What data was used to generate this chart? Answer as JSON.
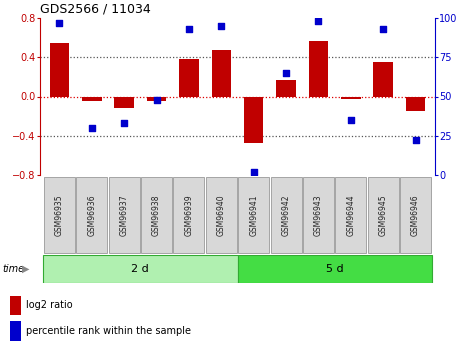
{
  "title": "GDS2566 / 11034",
  "samples": [
    "GSM96935",
    "GSM96936",
    "GSM96937",
    "GSM96938",
    "GSM96939",
    "GSM96940",
    "GSM96941",
    "GSM96942",
    "GSM96943",
    "GSM96944",
    "GSM96945",
    "GSM96946"
  ],
  "log2_ratio": [
    0.55,
    -0.05,
    -0.12,
    -0.05,
    0.38,
    0.47,
    -0.47,
    0.17,
    0.57,
    -0.03,
    0.35,
    -0.15
  ],
  "percentile": [
    97,
    30,
    33,
    48,
    93,
    95,
    2,
    65,
    98,
    35,
    93,
    22
  ],
  "bar_color": "#c00000",
  "dot_color": "#0000cc",
  "group1_label": "2 d",
  "group2_label": "5 d",
  "group1_indices": [
    0,
    1,
    2,
    3,
    4,
    5
  ],
  "group2_indices": [
    6,
    7,
    8,
    9,
    10,
    11
  ],
  "ylim_left": [
    -0.8,
    0.8
  ],
  "ylim_right": [
    0,
    100
  ],
  "yticks_left": [
    -0.8,
    -0.4,
    0.0,
    0.4,
    0.8
  ],
  "yticks_right": [
    0,
    25,
    50,
    75,
    100
  ],
  "hline_color": "#dd0000",
  "dotted_color": "#555555",
  "group1_color": "#b0f0b0",
  "group2_color": "#44dd44",
  "legend_bar_label": "log2 ratio",
  "legend_dot_label": "percentile rank within the sample",
  "time_label": "time",
  "bar_width": 0.6
}
